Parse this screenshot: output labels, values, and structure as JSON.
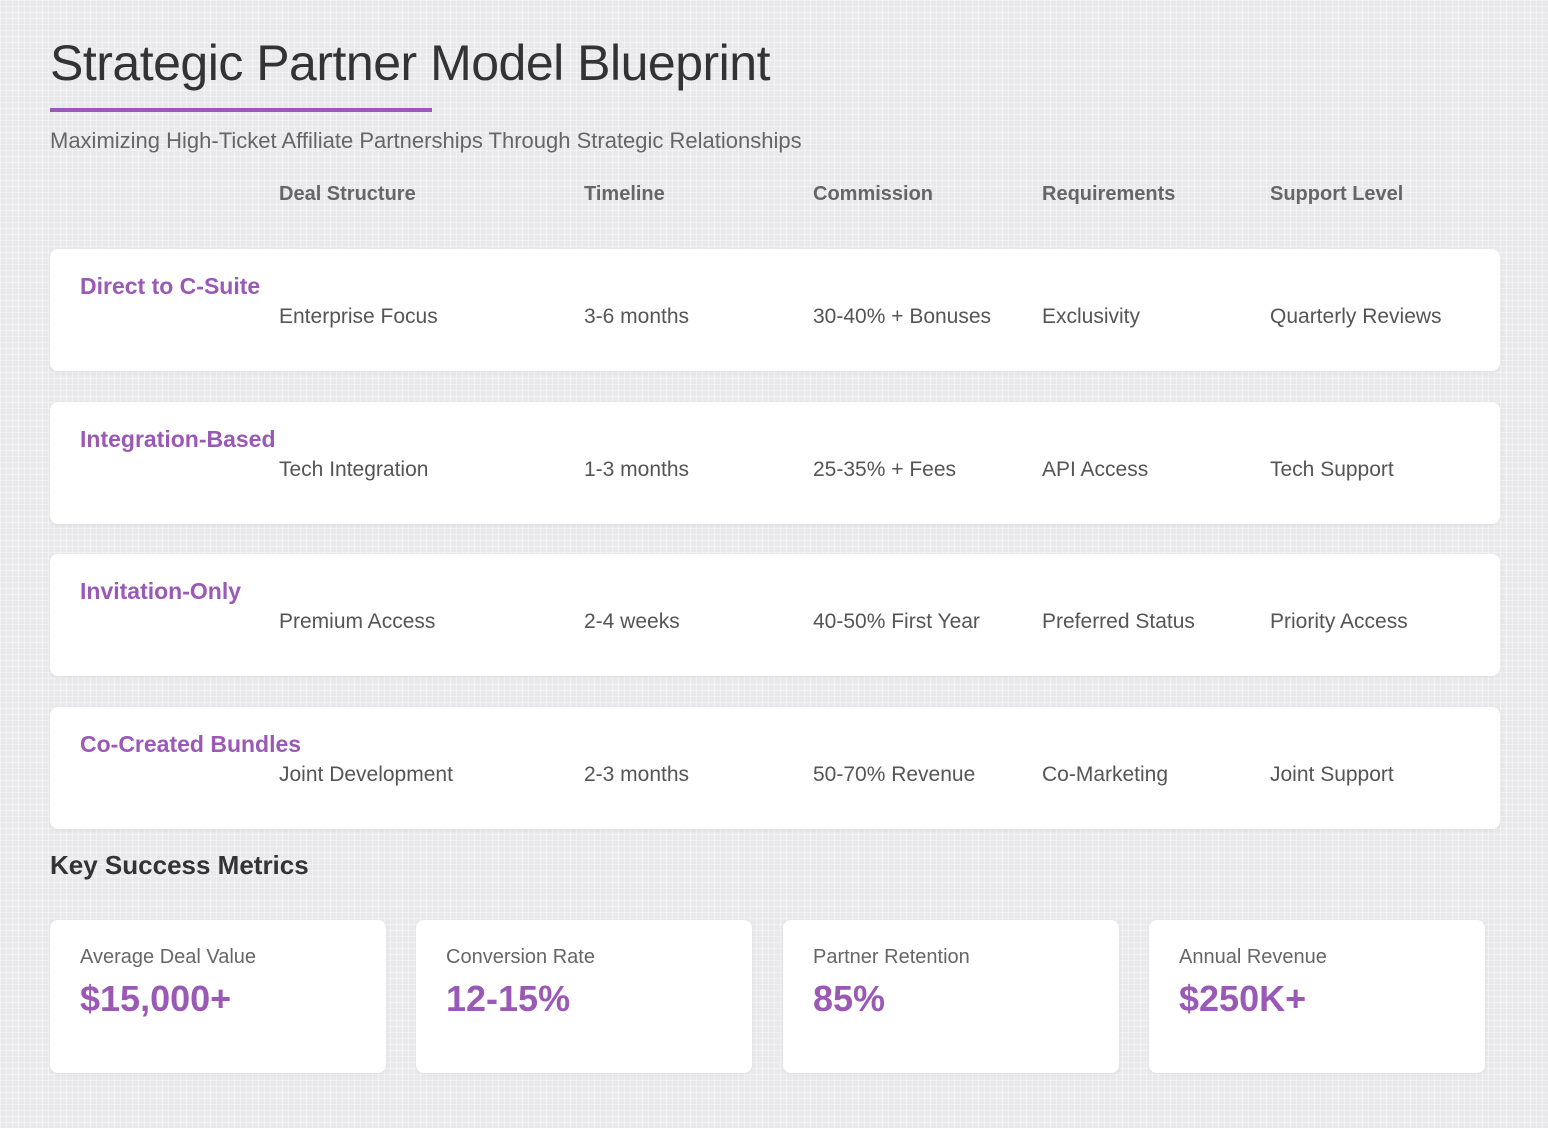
{
  "header": {
    "title": "Strategic Partner Model Blueprint",
    "subtitle": "Maximizing High-Ticket Affiliate Partnerships Through Strategic Relationships"
  },
  "table": {
    "columns": [
      "Deal Structure",
      "Timeline",
      "Commission",
      "Requirements",
      "Support Level"
    ],
    "rows": [
      {
        "name": "Direct to C-Suite",
        "cells": [
          "Enterprise Focus",
          "3-6 months",
          "30-40% + Bonuses",
          "Exclusivity",
          "Quarterly Reviews"
        ]
      },
      {
        "name": "Integration-Based",
        "cells": [
          "Tech Integration",
          "1-3 months",
          "25-35% + Fees",
          "API Access",
          "Tech Support"
        ]
      },
      {
        "name": "Invitation-Only",
        "cells": [
          "Premium Access",
          "2-4 weeks",
          "40-50% First Year",
          "Preferred Status",
          "Priority Access"
        ]
      },
      {
        "name": "Co-Created Bundles",
        "cells": [
          "Joint Development",
          "2-3 months",
          "50-70% Revenue",
          "Co-Marketing",
          "Joint Support"
        ]
      }
    ]
  },
  "metrics": {
    "heading": "Key Success Metrics",
    "items": [
      {
        "label": "Average Deal Value",
        "value": "$15,000+"
      },
      {
        "label": "Conversion Rate",
        "value": "12-15%"
      },
      {
        "label": "Partner Retention",
        "value": "85%"
      },
      {
        "label": "Annual Revenue",
        "value": "$250K+"
      }
    ]
  },
  "colors": {
    "accent": "#9b59b6",
    "background": "#e9e9ec",
    "card": "#ffffff",
    "heading_text": "#333333",
    "body_text": "#555555"
  }
}
